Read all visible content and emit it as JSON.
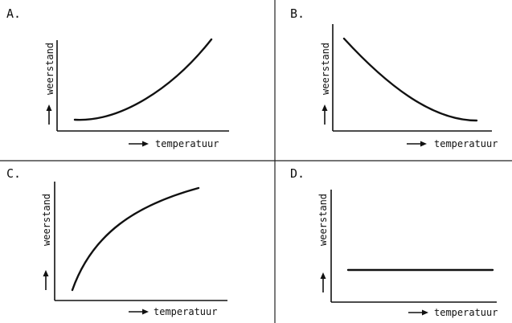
{
  "panels": [
    {
      "id": "a",
      "letter": "A.",
      "ylabel": "weerstand",
      "xlabel": "temperatuur",
      "curve": "rising-convex"
    },
    {
      "id": "b",
      "letter": "B.",
      "ylabel": "weerstand",
      "xlabel": "temperatuur",
      "curve": "falling-convex"
    },
    {
      "id": "c",
      "letter": "C.",
      "ylabel": "weerstand",
      "xlabel": "temperatuur",
      "curve": "rising-concave"
    },
    {
      "id": "d",
      "letter": "D.",
      "ylabel": "weerstand",
      "xlabel": "temperatuur",
      "curve": "constant"
    }
  ]
}
